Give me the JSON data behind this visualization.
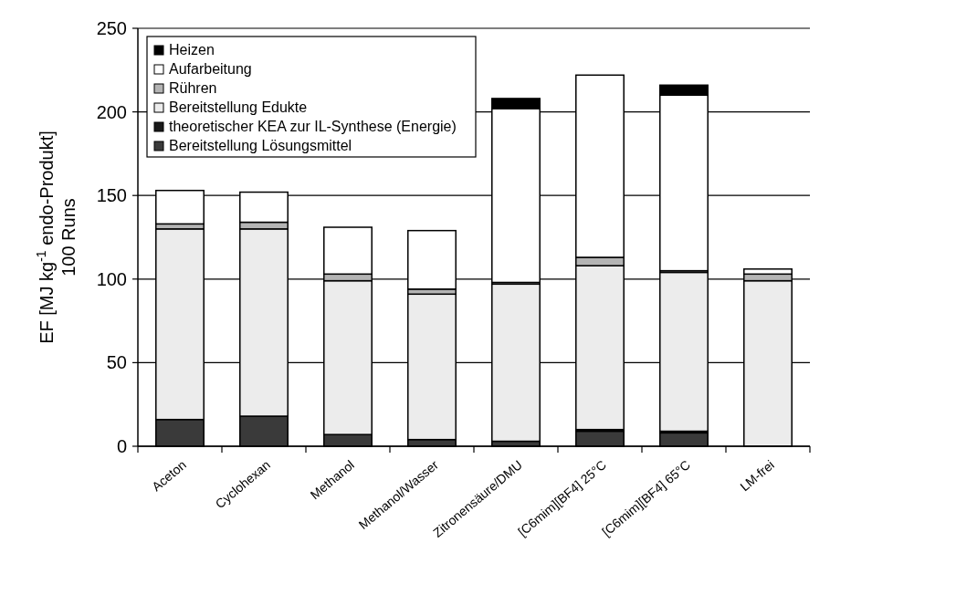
{
  "chart_data": {
    "type": "bar",
    "stacked": true,
    "ylabel": "EF [MJ kg$^{-1}$ endo-Produkt]\n100 Runs",
    "categories": [
      "Aceton",
      "Cyclohexan",
      "Methanol",
      "Methanol/Wasser",
      "Zitronensäure/DMU",
      "[C6mim][BF4] 25°C",
      "[C6mim][BF4] 65°C",
      "LM-frei"
    ],
    "series": [
      {
        "name": "Bereitstellung Lösungsmittel",
        "color": "#3a3a3a",
        "values": [
          16,
          18,
          7,
          4,
          3,
          9,
          8,
          0
        ]
      },
      {
        "name": "theoretischer KEA zur IL-Synthese (Energie)",
        "color": "#1a1a1a",
        "values": [
          0,
          0,
          0,
          0,
          0,
          1,
          1,
          0
        ]
      },
      {
        "name": "Bereitstellung Edukte",
        "color": "#ececec",
        "values": [
          114,
          112,
          92,
          87,
          94,
          98,
          95,
          99
        ]
      },
      {
        "name": "Rühren",
        "color": "#b4b4b4",
        "values": [
          3,
          4,
          4,
          3,
          1,
          5,
          1,
          4
        ]
      },
      {
        "name": "Aufarbeitung",
        "color": "#ffffff",
        "values": [
          20,
          18,
          28,
          35,
          104,
          109,
          105,
          3
        ]
      },
      {
        "name": "Heizen",
        "color": "#000000",
        "values": [
          0,
          0,
          0,
          0,
          6,
          0,
          6,
          0
        ]
      }
    ],
    "ylim": [
      0,
      250
    ],
    "yticks": [
      0,
      50,
      100,
      150,
      200,
      250
    ],
    "grid": "y",
    "legend": "top left"
  }
}
